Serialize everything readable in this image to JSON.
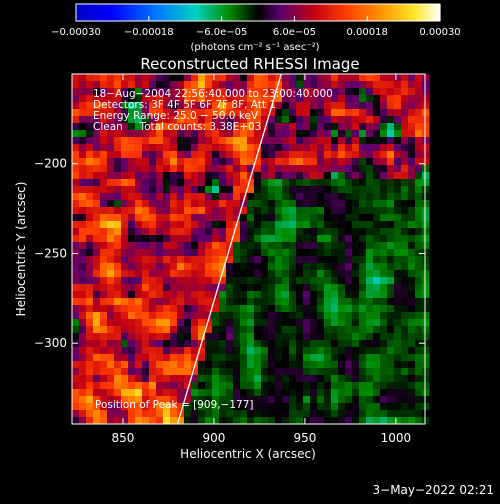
{
  "chart_data": {
    "type": "heatmap",
    "title": "Reconstructed RHESSI Image",
    "xlabel": "Heliocentric X (arcsec)",
    "ylabel": "Heliocentric Y (arcsec)",
    "xlim": [
      822,
      1016
    ],
    "ylim": [
      -345,
      -150
    ],
    "x_ticks": [
      {
        "value": 850,
        "label": "850"
      },
      {
        "value": 900,
        "label": "900"
      },
      {
        "value": 950,
        "label": "950"
      },
      {
        "value": 1000,
        "label": "1000"
      }
    ],
    "y_ticks": [
      {
        "value": -200,
        "label": "−200"
      },
      {
        "value": -250,
        "label": "−250"
      },
      {
        "value": -300,
        "label": "−300"
      }
    ],
    "colorbar": {
      "min": -0.0003,
      "max": 0.0003,
      "ticks": [
        {
          "value": -0.0003,
          "label": "−0.00030"
        },
        {
          "value": -0.00018,
          "label": "−0.00018"
        },
        {
          "value": -6e-05,
          "label": "−6.0e−05"
        },
        {
          "value": 6e-05,
          "label": "6.0e−05"
        },
        {
          "value": 0.00018,
          "label": "0.00018"
        },
        {
          "value": 0.0003,
          "label": "0.00030"
        }
      ],
      "unit_label": "(photons cm⁻² s⁻¹ asec⁻²)"
    },
    "annotations": [
      "18−Aug−2004 22:56:40.000 to 23:00:40.000",
      "Detectors: 3F 4F 5F 6F 7F 8F, Att 1",
      "Energy Range: 25.0 − 50.0 keV",
      "Clean     Total counts: 3.38E+03"
    ],
    "peak_text": "Position of Peak = [909,−177]",
    "limb_line": [
      [
        880,
        -345
      ],
      [
        937,
        -150
      ]
    ],
    "timestamp": "3−May−2022 02:21"
  }
}
